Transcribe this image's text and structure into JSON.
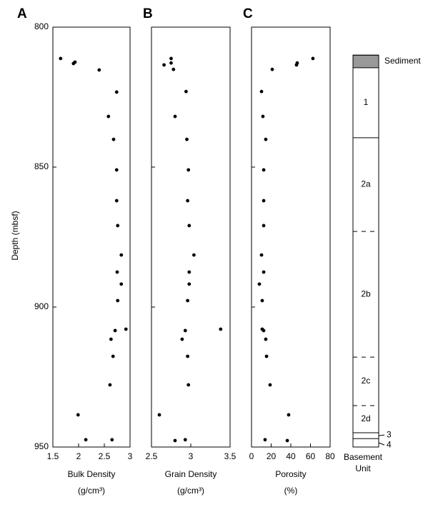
{
  "chart_data": [
    {
      "type": "scatter",
      "title": "A",
      "ylabel": "Depth (mbsf)",
      "xlabel": "Bulk Density",
      "xunit": "(g/cm³)",
      "color": "#000000",
      "xlim": [
        1.5,
        3
      ],
      "xticks": [
        1.5,
        2,
        2.5,
        3
      ],
      "ylim": [
        800,
        950
      ],
      "yticks": [
        800,
        850,
        900,
        950
      ],
      "y_inverted": true,
      "x": [
        1.65,
        1.9,
        1.93,
        2.4,
        2.74,
        2.58,
        2.68,
        2.74,
        2.74,
        2.76,
        2.83,
        2.75,
        2.83,
        2.76,
        2.92,
        2.71,
        2.63,
        2.67,
        2.61,
        1.99,
        2.14,
        2.65
      ],
      "y": [
        811.2,
        813.0,
        812.5,
        815.3,
        823.2,
        831.9,
        840.1,
        851.0,
        862.0,
        870.9,
        881.4,
        887.5,
        891.8,
        897.7,
        907.9,
        908.4,
        911.5,
        917.6,
        927.8,
        938.5,
        947.4,
        947.4
      ]
    },
    {
      "type": "scatter",
      "title": "B",
      "xlabel": "Grain Density",
      "xunit": "(g/cm³)",
      "color": "#000000",
      "xlim": [
        2.5,
        3.5
      ],
      "xticks": [
        2.5,
        3,
        3.5
      ],
      "ylim": [
        800,
        950
      ],
      "y_inverted": true,
      "x": [
        2.75,
        2.75,
        2.66,
        2.78,
        2.94,
        2.8,
        2.95,
        2.97,
        2.96,
        2.98,
        3.04,
        2.98,
        2.98,
        2.96,
        3.38,
        2.93,
        2.89,
        2.96,
        2.97,
        2.6,
        2.8,
        2.93
      ],
      "y": [
        811.2,
        812.8,
        813.5,
        815.1,
        823.0,
        831.9,
        840.1,
        851.0,
        862.0,
        870.9,
        881.4,
        887.5,
        891.8,
        897.7,
        907.9,
        908.4,
        911.5,
        917.6,
        927.8,
        938.5,
        947.7,
        947.4
      ]
    },
    {
      "type": "scatter",
      "title": "C",
      "xlabel": "Porosity",
      "xunit": "(%)",
      "color": "#000000",
      "xlim": [
        0,
        80
      ],
      "xticks": [
        0,
        20,
        40,
        60,
        80
      ],
      "ylim": [
        800,
        950
      ],
      "y_inverted": true,
      "x": [
        62.5,
        46.5,
        45.8,
        21.1,
        10.2,
        11.6,
        14.5,
        12.4,
        12.4,
        12.4,
        10.2,
        12.4,
        8.0,
        10.9,
        10.9,
        12.4,
        14.5,
        15.3,
        18.9,
        37.8,
        36.4,
        13.8
      ],
      "y": [
        811.2,
        812.8,
        813.5,
        815.1,
        823.0,
        831.9,
        840.1,
        851.0,
        862.0,
        870.9,
        881.4,
        887.5,
        891.8,
        897.7,
        907.9,
        908.4,
        911.5,
        917.6,
        927.8,
        938.5,
        947.7,
        947.4
      ]
    }
  ],
  "lithology": {
    "title_lines": [
      "Basement",
      "Unit"
    ],
    "units": [
      {
        "name": "Sediment",
        "top": 810,
        "bottom": 814.5,
        "fill": "#999999",
        "top_line": "solid"
      },
      {
        "name": "1",
        "top": 814.5,
        "bottom": 839.5,
        "fill": "#ffffff",
        "top_line": "solid"
      },
      {
        "name": "2a",
        "top": 839.5,
        "bottom": 873,
        "fill": "#ffffff",
        "top_line": "solid"
      },
      {
        "name": "2b",
        "top": 873,
        "bottom": 917.9,
        "fill": "#ffffff",
        "top_line": "dashed"
      },
      {
        "name": "2c",
        "top": 917.9,
        "bottom": 935.2,
        "fill": "#ffffff",
        "top_line": "dashed"
      },
      {
        "name": "2d",
        "top": 935.2,
        "bottom": 944.9,
        "fill": "#ffffff",
        "top_line": "dashed"
      },
      {
        "name": "3",
        "top": 944.9,
        "bottom": 947,
        "fill": "#ffffff",
        "top_line": "solid"
      },
      {
        "name": "4",
        "top": 947,
        "bottom": 950,
        "fill": "#ffffff",
        "top_line": "solid"
      }
    ]
  }
}
